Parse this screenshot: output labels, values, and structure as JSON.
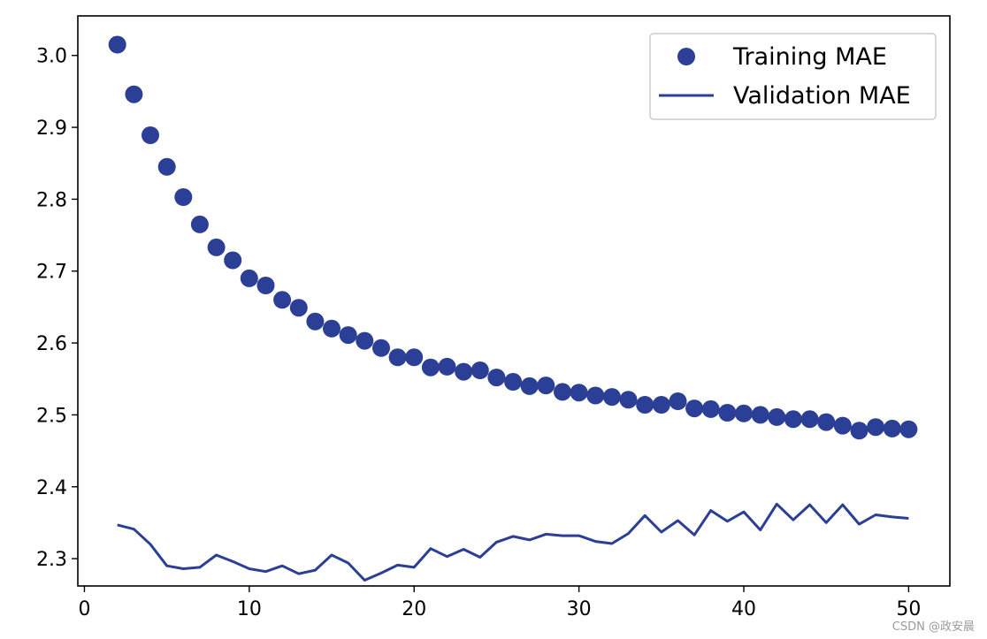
{
  "chart_data": {
    "type": "scatter+line",
    "title": "",
    "xlabel": "",
    "ylabel": "",
    "xlim": [
      -0.4,
      52.5
    ],
    "ylim": [
      2.262,
      3.055
    ],
    "xticks": [
      0,
      10,
      20,
      30,
      40,
      50
    ],
    "yticks": [
      2.3,
      2.4,
      2.5,
      2.6,
      2.7,
      2.8,
      2.9,
      3.0
    ],
    "xtick_labels": [
      "0",
      "10",
      "20",
      "30",
      "40",
      "50"
    ],
    "ytick_labels": [
      "2.3",
      "2.4",
      "2.5",
      "2.6",
      "2.7",
      "2.8",
      "2.9",
      "3.0"
    ],
    "grid": false,
    "legend_position": "top-right",
    "series_color": "#2a3f95",
    "x": [
      2,
      3,
      4,
      5,
      6,
      7,
      8,
      9,
      10,
      11,
      12,
      13,
      14,
      15,
      16,
      17,
      18,
      19,
      20,
      21,
      22,
      23,
      24,
      25,
      26,
      27,
      28,
      29,
      30,
      31,
      32,
      33,
      34,
      35,
      36,
      37,
      38,
      39,
      40,
      41,
      42,
      43,
      44,
      45,
      46,
      47,
      48,
      49,
      50
    ],
    "series": [
      {
        "name": "Training MAE",
        "style": "markers",
        "values": [
          3.015,
          2.946,
          2.889,
          2.845,
          2.803,
          2.765,
          2.733,
          2.715,
          2.69,
          2.68,
          2.66,
          2.649,
          2.63,
          2.62,
          2.611,
          2.603,
          2.593,
          2.58,
          2.58,
          2.566,
          2.567,
          2.56,
          2.562,
          2.552,
          2.546,
          2.54,
          2.541,
          2.532,
          2.531,
          2.527,
          2.525,
          2.521,
          2.514,
          2.514,
          2.519,
          2.509,
          2.508,
          2.503,
          2.502,
          2.5,
          2.497,
          2.494,
          2.494,
          2.49,
          2.485,
          2.478,
          2.483,
          2.481,
          2.48
        ]
      },
      {
        "name": "Validation MAE",
        "style": "line",
        "values": [
          2.347,
          2.341,
          2.32,
          2.29,
          2.286,
          2.288,
          2.305,
          2.296,
          2.286,
          2.282,
          2.29,
          2.279,
          2.284,
          2.305,
          2.294,
          2.27,
          2.28,
          2.291,
          2.288,
          2.314,
          2.303,
          2.313,
          2.302,
          2.323,
          2.331,
          2.326,
          2.334,
          2.332,
          2.332,
          2.324,
          2.321,
          2.335,
          2.36,
          2.337,
          2.353,
          2.333,
          2.367,
          2.352,
          2.365,
          2.34,
          2.376,
          2.354,
          2.375,
          2.35,
          2.375,
          2.348,
          2.361,
          2.358,
          2.356
        ]
      }
    ]
  },
  "watermark": "CSDN @政安晨"
}
